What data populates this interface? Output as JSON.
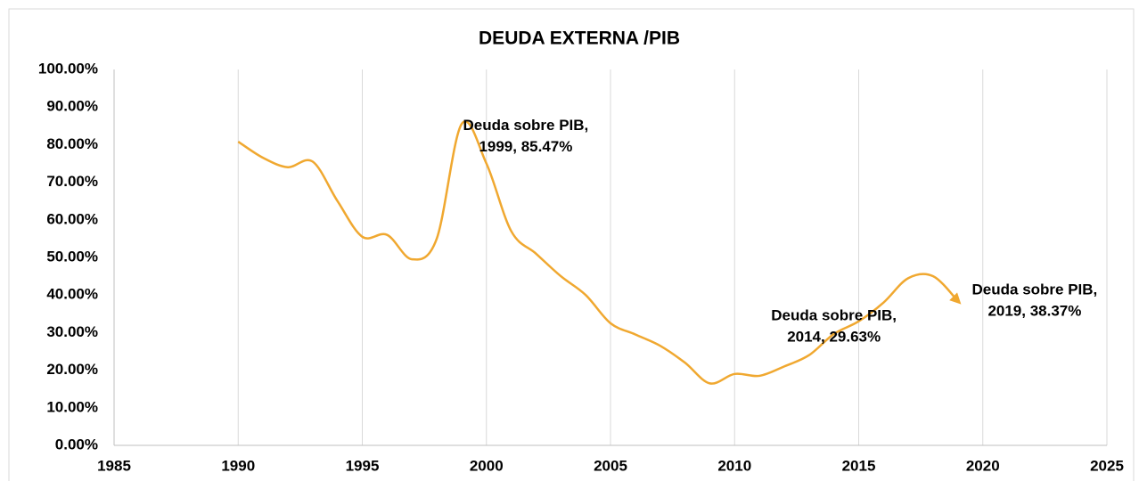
{
  "chart_data": {
    "type": "line",
    "title": "DEUDA EXTERNA /PIB",
    "series": [
      {
        "name": "Deuda sobre PIB",
        "color": "#f0a830",
        "x": [
          1990,
          1991,
          1992,
          1993,
          1994,
          1995,
          1996,
          1997,
          1998,
          1999,
          2000,
          2001,
          2002,
          2003,
          2004,
          2005,
          2006,
          2007,
          2008,
          2009,
          2010,
          2011,
          2012,
          2013,
          2014,
          2015,
          2016,
          2017,
          2018,
          2019
        ],
        "values": [
          80.8,
          76.5,
          74,
          75.5,
          65,
          55.5,
          56,
          49.5,
          55,
          85.47,
          75,
          57,
          51,
          45,
          40,
          32.5,
          29.5,
          26.5,
          22,
          16.5,
          19,
          18.5,
          21,
          24,
          29.63,
          33,
          38,
          44.5,
          45,
          38.37
        ],
        "value_labels": [
          null,
          null,
          null,
          null,
          null,
          null,
          null,
          null,
          null,
          [
            "Deuda sobre PIB,",
            "1999, 85.47%"
          ],
          null,
          null,
          null,
          null,
          null,
          null,
          null,
          null,
          null,
          null,
          null,
          null,
          null,
          null,
          [
            "Deuda sobre PIB,",
            "2014, 29.63%"
          ],
          null,
          null,
          null,
          null,
          [
            "Deuda sobre PIB,",
            "2019, 38.37%"
          ]
        ]
      }
    ],
    "xlim": [
      1985,
      2025
    ],
    "xticks": [
      1985,
      1990,
      1995,
      2000,
      2005,
      2010,
      2015,
      2020,
      2025
    ],
    "ylim": [
      0,
      100
    ],
    "yticks": [
      {
        "value": 0,
        "label": "0.00%"
      },
      {
        "value": 10,
        "label": "10.00%"
      },
      {
        "value": 20,
        "label": "20.00%"
      },
      {
        "value": 30,
        "label": "30.00%"
      },
      {
        "value": 40,
        "label": "40.00%"
      },
      {
        "value": 50,
        "label": "50.00%"
      },
      {
        "value": 60,
        "label": "60.00%"
      },
      {
        "value": 70,
        "label": "70.00%"
      },
      {
        "value": 80,
        "label": "80.00%"
      },
      {
        "value": 90,
        "label": "90.00%"
      },
      {
        "value": 100,
        "label": "100.00%"
      }
    ],
    "grid": "x"
  }
}
